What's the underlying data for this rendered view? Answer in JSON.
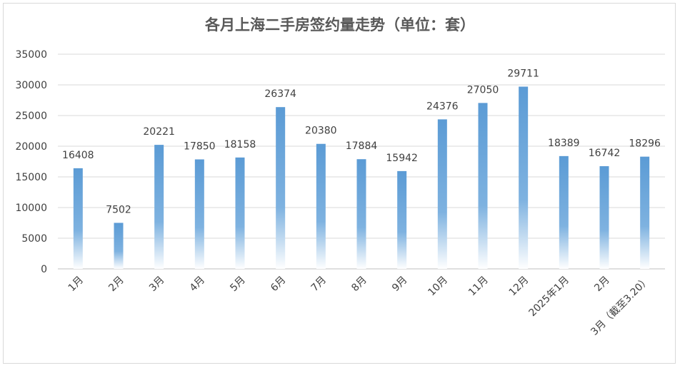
{
  "chart_data": {
    "type": "bar",
    "title": "各月上海二手房签约量走势（单位：套）",
    "categories": [
      "1月",
      "2月",
      "3月",
      "4月",
      "5月",
      "6月",
      "7月",
      "8月",
      "9月",
      "10月",
      "11月",
      "12月",
      "2025年1月",
      "2月",
      "3月（截至3.20）"
    ],
    "series": [
      {
        "values": [
          16408,
          7502,
          20221,
          17850,
          18158,
          26374,
          20380,
          17884,
          15942,
          24376,
          27050,
          29711,
          18389,
          16742,
          18296
        ]
      }
    ],
    "highlight_index": 11,
    "ylim": [
      0,
      35000
    ],
    "yticks": [
      0,
      5000,
      10000,
      15000,
      20000,
      25000,
      30000,
      35000
    ],
    "grid": true,
    "legend": "none",
    "colors": {
      "bar_top": "#5b9bd5",
      "bar_bottom": "#ffffff",
      "label": "#404040",
      "highlight_label": "#c00000",
      "grid": "#d9d9d9",
      "axis": "#bfbfbf",
      "title": "#595959"
    }
  }
}
